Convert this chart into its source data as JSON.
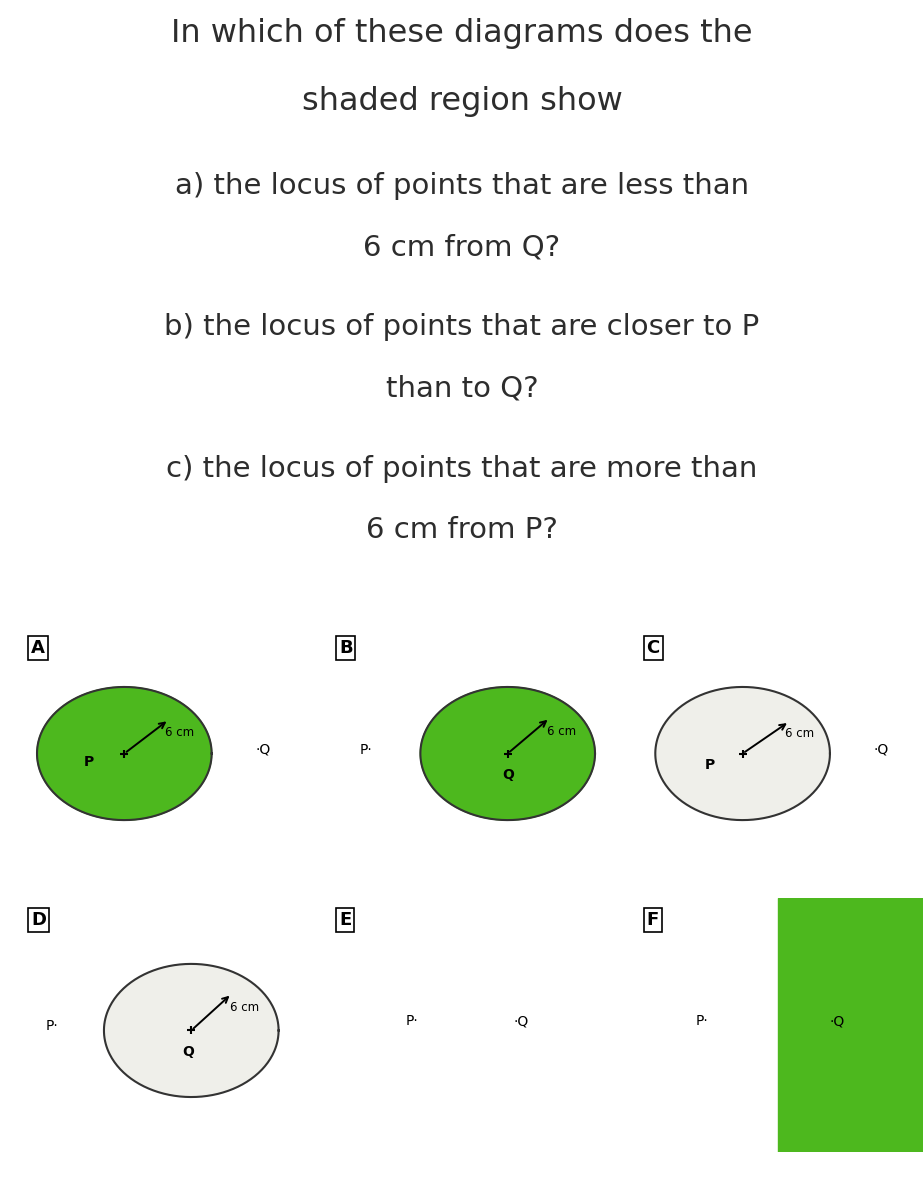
{
  "title_line1": "In which of these diagrams does the",
  "title_line2": "shaded region show",
  "q_a1": "a) the locus of points that are less than",
  "q_a2": "6 cm from Q?",
  "q_b1": "b) the locus of points that are closer to P",
  "q_b2": "than to Q?",
  "q_c1": "c) the locus of points that are more than",
  "q_c2": "6 cm from P?",
  "bg_color": "#ffffff",
  "panel_bg_light": "#e4e4da",
  "green_color": "#4db81e",
  "text_color": "#2d2d2d",
  "fs_title": 23,
  "fs_q": 21,
  "fs_label": 13,
  "fs_diag": 10,
  "fs_6cm": 8.5
}
